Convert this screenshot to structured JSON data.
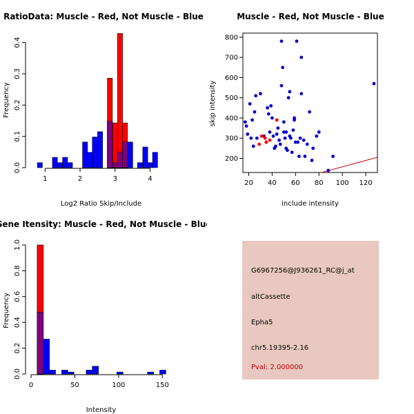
{
  "chart_data": [
    {
      "type": "histogram",
      "title": "RatioData: Muscle - Red, Not Muscle - Blue",
      "xlabel": "Log2 Ratio Skip/Include",
      "ylabel": "Frequency",
      "xlim": [
        0.6,
        4.6
      ],
      "ylim": [
        0,
        0.43
      ],
      "xticks": [
        1,
        2,
        3,
        4
      ],
      "yticks": [
        0.0,
        0.1,
        0.2,
        0.3,
        0.4
      ],
      "bin_width": 0.143,
      "series": [
        {
          "name": "Not Muscle",
          "color": "#0000ff",
          "bins": [
            {
              "x": 0.78,
              "value": 0.016
            },
            {
              "x": 1.21,
              "value": 0.033
            },
            {
              "x": 1.35,
              "value": 0.016
            },
            {
              "x": 1.5,
              "value": 0.033
            },
            {
              "x": 1.64,
              "value": 0.016
            },
            {
              "x": 2.07,
              "value": 0.082
            },
            {
              "x": 2.21,
              "value": 0.049
            },
            {
              "x": 2.35,
              "value": 0.098
            },
            {
              "x": 2.5,
              "value": 0.115
            },
            {
              "x": 2.78,
              "value": 0.148
            },
            {
              "x": 2.93,
              "value": 0.016
            },
            {
              "x": 3.07,
              "value": 0.049
            },
            {
              "x": 3.21,
              "value": 0.082
            },
            {
              "x": 3.36,
              "value": 0.082
            },
            {
              "x": 3.64,
              "value": 0.016
            },
            {
              "x": 3.79,
              "value": 0.066
            },
            {
              "x": 3.93,
              "value": 0.016
            },
            {
              "x": 4.07,
              "value": 0.049
            }
          ]
        },
        {
          "name": "Muscle",
          "color": "#ff0000",
          "bins": [
            {
              "x": 2.78,
              "value": 0.286
            },
            {
              "x": 2.93,
              "value": 0.143
            },
            {
              "x": 3.07,
              "value": 0.429
            },
            {
              "x": 3.21,
              "value": 0.143
            }
          ]
        }
      ],
      "overlap_color": "#800080"
    },
    {
      "type": "scatter",
      "title": "Muscle - Red, Not Muscle - Blue",
      "xlabel": "include intensity",
      "ylabel": "skip intensity",
      "xlim": [
        15,
        130
      ],
      "ylim": [
        130,
        820
      ],
      "xticks": [
        20,
        40,
        60,
        80,
        100,
        120
      ],
      "yticks": [
        200,
        300,
        400,
        500,
        600,
        700,
        800
      ],
      "series": [
        {
          "name": "Not Muscle",
          "color": "#0000cc",
          "x": [
            17,
            18,
            19,
            21,
            22,
            23,
            24,
            25,
            26,
            27,
            30,
            33,
            35,
            36,
            37,
            38,
            39,
            40,
            41,
            42,
            43,
            44,
            45,
            46,
            47,
            48,
            49,
            50,
            50,
            51,
            52,
            52,
            53,
            54,
            55,
            56,
            57,
            58,
            59,
            59,
            60,
            62,
            63,
            64,
            65,
            67,
            68,
            70,
            72,
            74,
            75,
            78,
            80,
            88,
            92,
            127,
            48,
            61,
            65,
            55
          ],
          "y": [
            380,
            360,
            320,
            470,
            300,
            390,
            260,
            430,
            510,
            300,
            520,
            310,
            280,
            450,
            420,
            330,
            460,
            400,
            310,
            250,
            260,
            320,
            350,
            290,
            270,
            560,
            650,
            330,
            380,
            300,
            330,
            250,
            240,
            500,
            310,
            300,
            230,
            340,
            390,
            400,
            280,
            280,
            210,
            300,
            520,
            290,
            210,
            270,
            430,
            190,
            250,
            310,
            330,
            140,
            210,
            570,
            780,
            780,
            700,
            530
          ]
        },
        {
          "name": "Muscle",
          "color": "#ff0000",
          "x": [
            29,
            31,
            34,
            35,
            38,
            44
          ],
          "y": [
            270,
            310,
            300,
            280,
            290,
            390
          ]
        }
      ],
      "reference_lines": [
        {
          "name": "identity",
          "color": "#000080",
          "slope": 1,
          "intercept": 0
        },
        {
          "name": "muscle-fit",
          "color": "#cc0000",
          "slope": 1.58,
          "intercept": 0
        }
      ]
    },
    {
      "type": "histogram",
      "title": "Gene Itensity: Muscle - Red, Not Muscle - Blue",
      "xlabel": "Intensity",
      "ylabel": "Frequency",
      "xlim": [
        0,
        160
      ],
      "ylim": [
        0,
        1.0
      ],
      "xticks": [
        0,
        50,
        100,
        150
      ],
      "yticks": [
        0.0,
        0.2,
        0.4,
        0.6,
        0.8,
        1.0
      ],
      "bin_width": 7,
      "series": [
        {
          "name": "Not Muscle",
          "color": "#0000ff",
          "bins": [
            {
              "x": 7,
              "value": 0.48
            },
            {
              "x": 14,
              "value": 0.27
            },
            {
              "x": 21,
              "value": 0.03
            },
            {
              "x": 35,
              "value": 0.03
            },
            {
              "x": 42,
              "value": 0.015
            },
            {
              "x": 63,
              "value": 0.03
            },
            {
              "x": 70,
              "value": 0.06
            },
            {
              "x": 98,
              "value": 0.015
            },
            {
              "x": 133,
              "value": 0.015
            },
            {
              "x": 147,
              "value": 0.03
            }
          ]
        },
        {
          "name": "Muscle",
          "color": "#ff0000",
          "bins": [
            {
              "x": 7,
              "value": 1.0
            }
          ]
        }
      ],
      "overlap_color": "#800080"
    }
  ],
  "info": {
    "probe_id": "G6967256@J936261_RC@j_at",
    "event_type": "altCassette",
    "gene": "Epha5",
    "location": "chr5.19395-2.16",
    "pval": "Pval: 2.000000"
  }
}
